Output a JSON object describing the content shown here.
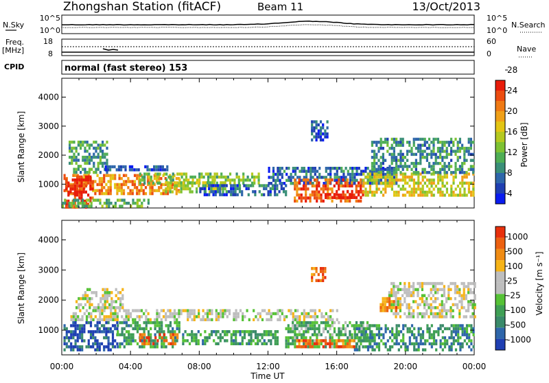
{
  "header": {
    "station": "Zhongshan Station (fitACF)",
    "beam": "Beam 11",
    "date": "13/Oct/2013"
  },
  "top_panels": {
    "nsky_label": "N.Sky",
    "nsky_ticks": [
      "10^5",
      "10^0"
    ],
    "nsearch_ticks": [
      "10^5",
      "10^0"
    ],
    "nsearch_label": "N.Search",
    "freq_label": "Freq.",
    "freq_unit": "[MHz]",
    "freq_ticks": [
      "18",
      "8"
    ],
    "nave_ticks": [
      "60",
      "0"
    ],
    "nave_label": "Nave",
    "cpid_label": "CPID",
    "cpid_value": "normal (fast stereo) 153"
  },
  "chart_data": [
    {
      "type": "heatmap",
      "quantity": "Power",
      "ylabel": "Slant Range [km]",
      "xlabel": "Time UT",
      "x_ticks": [
        "00:00",
        "04:00",
        "08:00",
        "12:00",
        "16:00",
        "20:00",
        "00:00"
      ],
      "xlim_hours": [
        0,
        24
      ],
      "y_ticks": [
        1000,
        2000,
        3000,
        4000
      ],
      "ylim_km": [
        180,
        4650
      ],
      "colorbar": {
        "label": "Power [dB]",
        "ticks": [
          "4",
          "8",
          "12",
          "16",
          "20",
          "24",
          "28"
        ],
        "colors": [
          "#0a1cf0",
          "#1f3fb2",
          "#2e66aa",
          "#3a8f78",
          "#4fae55",
          "#7ec233",
          "#b5c920",
          "#e3c514",
          "#f0a018",
          "#f07a14",
          "#ec4c10",
          "#e81c0a"
        ]
      },
      "echo_regions": [
        {
          "t": [
            0.1,
            6.8
          ],
          "r": [
            650,
            1350
          ],
          "level": 0.75
        },
        {
          "t": [
            0.2,
            1.8
          ],
          "r": [
            250,
            1300
          ],
          "level": 0.95
        },
        {
          "t": [
            0.4,
            2.6
          ],
          "r": [
            1400,
            2500
          ],
          "level": 0.35
        },
        {
          "t": [
            2.5,
            6.5
          ],
          "r": [
            1450,
            1650
          ],
          "level": 0.15
        },
        {
          "t": [
            4.5,
            11.5
          ],
          "r": [
            1050,
            1400
          ],
          "level": 0.45
        },
        {
          "t": [
            6.0,
            9.5
          ],
          "r": [
            700,
            1100
          ],
          "level": 0.5
        },
        {
          "t": [
            8.0,
            13.0
          ],
          "r": [
            600,
            1000
          ],
          "level": 0.2
        },
        {
          "t": [
            12.0,
            19.5
          ],
          "r": [
            1000,
            1600
          ],
          "level": 0.2
        },
        {
          "t": [
            13.5,
            17.5
          ],
          "r": [
            400,
            1200
          ],
          "level": 0.85
        },
        {
          "t": [
            15.3,
            17.5
          ],
          "r": [
            550,
            800
          ],
          "level": 1.0
        },
        {
          "t": [
            17.5,
            24.0
          ],
          "r": [
            600,
            1400
          ],
          "level": 0.6
        },
        {
          "t": [
            18.0,
            24.0
          ],
          "r": [
            1400,
            2600
          ],
          "level": 0.3
        },
        {
          "t": [
            14.5,
            15.5
          ],
          "r": [
            2500,
            3200
          ],
          "level": 0.15
        },
        {
          "t": [
            0.0,
            5.0
          ],
          "r": [
            200,
            500
          ],
          "level": 0.4
        }
      ]
    },
    {
      "type": "heatmap",
      "quantity": "Velocity",
      "ylabel": "Slant Range [km]",
      "xlabel": "Time UT",
      "x_ticks": [
        "00:00",
        "04:00",
        "08:00",
        "12:00",
        "16:00",
        "20:00",
        "00:00"
      ],
      "xlim_hours": [
        0,
        24
      ],
      "y_ticks": [
        1000,
        2000,
        3000,
        4000
      ],
      "ylim_km": [
        180,
        4650
      ],
      "colorbar": {
        "label": "Velocity [m s⁻¹]",
        "ticks": [
          "1000",
          "500",
          "100",
          "25",
          "-25",
          "-100",
          "-500",
          "-1000"
        ],
        "colors": [
          "#1f3fb2",
          "#2e66aa",
          "#3a8a6a",
          "#3f9f55",
          "#56c236",
          "#bebebe",
          "#bebebe",
          "#f6b418",
          "#f08c14",
          "#ec6010",
          "#e8300c"
        ]
      },
      "echo_regions": [
        {
          "t": [
            0.1,
            3.2
          ],
          "r": [
            300,
            1300
          ],
          "level": 0.1
        },
        {
          "t": [
            3.2,
            6.8
          ],
          "r": [
            400,
            1300
          ],
          "level": 0.3
        },
        {
          "t": [
            4.5,
            6.8
          ],
          "r": [
            500,
            900
          ],
          "level": 0.85
        },
        {
          "t": [
            0.5,
            16.0
          ],
          "r": [
            1350,
            1700
          ],
          "level": 0.55
        },
        {
          "t": [
            0.8,
            3.5
          ],
          "r": [
            1700,
            2400
          ],
          "level": 0.55
        },
        {
          "t": [
            7.0,
            12.5
          ],
          "r": [
            500,
            1000
          ],
          "level": 0.3
        },
        {
          "t": [
            13.0,
            18.0
          ],
          "r": [
            400,
            1300
          ],
          "level": 0.35
        },
        {
          "t": [
            13.5,
            17.0
          ],
          "r": [
            400,
            700
          ],
          "level": 0.85
        },
        {
          "t": [
            17.0,
            24.0
          ],
          "r": [
            300,
            1200
          ],
          "level": 0.25
        },
        {
          "t": [
            19.0,
            24.0
          ],
          "r": [
            1400,
            2600
          ],
          "level": 0.55
        },
        {
          "t": [
            14.5,
            15.3
          ],
          "r": [
            2600,
            3100
          ],
          "level": 0.85
        },
        {
          "t": [
            18.5,
            19.5
          ],
          "r": [
            1600,
            2100
          ],
          "level": 0.8
        }
      ]
    }
  ]
}
